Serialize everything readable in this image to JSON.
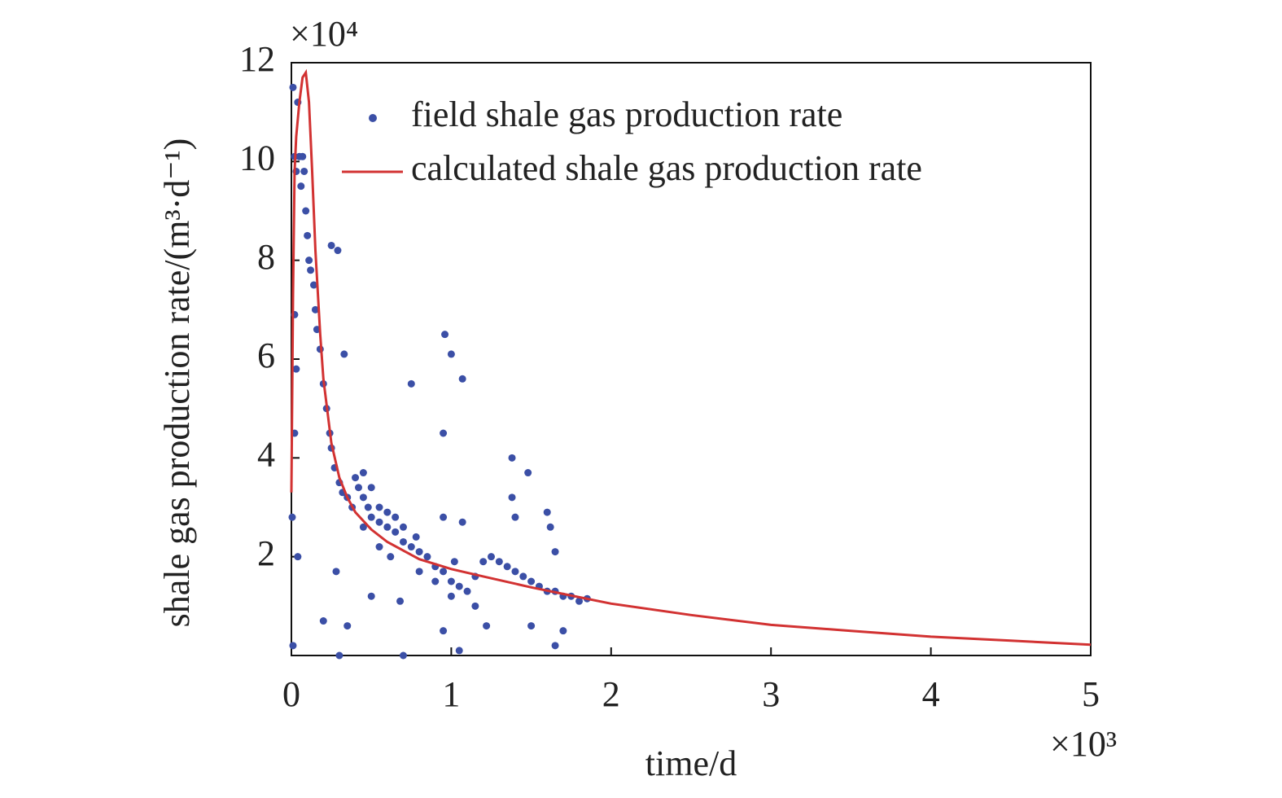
{
  "chart_data": {
    "type": "scatter_line",
    "x_multiplier": "×10³",
    "y_multiplier": "×10⁴",
    "xlabel": "time/d",
    "ylabel": "shale gas production rate/(m³·d⁻¹)",
    "xlim": [
      0,
      5
    ],
    "ylim": [
      0,
      12
    ],
    "xticks": [
      0,
      1,
      2,
      3,
      4,
      5
    ],
    "yticks": [
      2,
      4,
      6,
      8,
      10,
      12
    ],
    "legend": "top",
    "series": [
      {
        "name": "field shale gas production rate",
        "kind": "scatter",
        "color": "#3b4fa6",
        "x": [
          0.01,
          0.02,
          0.03,
          0.04,
          0.05,
          0.06,
          0.07,
          0.08,
          0.09,
          0.1,
          0.11,
          0.12,
          0.14,
          0.15,
          0.16,
          0.18,
          0.2,
          0.22,
          0.24,
          0.25,
          0.27,
          0.3,
          0.32,
          0.35,
          0.38,
          0.4,
          0.42,
          0.45,
          0.48,
          0.5,
          0.55,
          0.6,
          0.65,
          0.7,
          0.75,
          0.8,
          0.85,
          0.9,
          0.95,
          1.0,
          1.05,
          1.1,
          1.15,
          1.2,
          1.25,
          1.3,
          1.35,
          1.4,
          1.45,
          1.5,
          1.55,
          1.6,
          1.65,
          1.7,
          1.75,
          1.8,
          1.85,
          0.005,
          0.01,
          0.02,
          0.02,
          0.03,
          0.04,
          0.25,
          0.29,
          0.33,
          0.2,
          0.35,
          0.3,
          0.75,
          0.96,
          1.0,
          1.07,
          0.95,
          1.38,
          1.48,
          1.38,
          1.4,
          0.7,
          0.95,
          1.05,
          1.6,
          1.62,
          1.65,
          1.7,
          0.68,
          0.5,
          0.28,
          0.95,
          1.07,
          1.15,
          1.22,
          1.5,
          1.65,
          0.45,
          0.5,
          0.55,
          0.6,
          0.65,
          0.7,
          0.55,
          0.8,
          0.9,
          1.0,
          1.02,
          0.45,
          0.62,
          0.78
        ],
        "values": [
          11.5,
          10.1,
          9.8,
          11.2,
          10.1,
          9.5,
          10.1,
          9.8,
          9.0,
          8.5,
          8.0,
          7.8,
          7.5,
          7.0,
          6.6,
          6.2,
          5.5,
          5.0,
          4.5,
          4.2,
          3.8,
          3.5,
          3.3,
          3.2,
          3.0,
          3.6,
          3.4,
          3.2,
          3.0,
          2.8,
          2.7,
          2.6,
          2.5,
          2.3,
          2.2,
          2.1,
          2.0,
          1.8,
          1.7,
          1.5,
          1.4,
          1.3,
          1.6,
          1.9,
          2.0,
          1.9,
          1.8,
          1.7,
          1.6,
          1.5,
          1.4,
          1.3,
          1.3,
          1.2,
          1.2,
          1.1,
          1.15,
          2.8,
          0.2,
          4.5,
          6.9,
          5.8,
          2.0,
          8.3,
          8.2,
          6.1,
          0.7,
          0.6,
          0,
          5.5,
          6.5,
          6.1,
          5.6,
          4.5,
          4.0,
          3.7,
          3.2,
          2.8,
          0,
          0.5,
          0.1,
          2.9,
          2.6,
          2.1,
          0.5,
          1.1,
          1.2,
          1.7,
          2.8,
          2.7,
          1.0,
          0.6,
          0.6,
          0.2,
          3.7,
          3.4,
          3.0,
          2.9,
          2.8,
          2.6,
          2.2,
          1.7,
          1.5,
          1.2,
          1.9,
          2.6,
          2.0,
          2.4
        ]
      },
      {
        "name": "calculated shale gas production rate",
        "kind": "line",
        "color": "#d23232",
        "x": [
          0,
          0.01,
          0.02,
          0.03,
          0.05,
          0.07,
          0.09,
          0.11,
          0.13,
          0.15,
          0.18,
          0.2,
          0.25,
          0.3,
          0.35,
          0.4,
          0.5,
          0.6,
          0.8,
          1.0,
          1.2,
          1.5,
          1.8,
          2.0,
          2.5,
          3.0,
          3.5,
          4.0,
          4.5,
          5.0
        ],
        "values": [
          3.3,
          7.3,
          9.8,
          10.5,
          11.2,
          11.7,
          11.8,
          11.2,
          9.8,
          8.2,
          6.5,
          5.6,
          4.3,
          3.6,
          3.2,
          2.9,
          2.55,
          2.3,
          1.95,
          1.75,
          1.6,
          1.38,
          1.18,
          1.05,
          0.82,
          0.62,
          0.5,
          0.38,
          0.3,
          0.22
        ]
      }
    ]
  }
}
